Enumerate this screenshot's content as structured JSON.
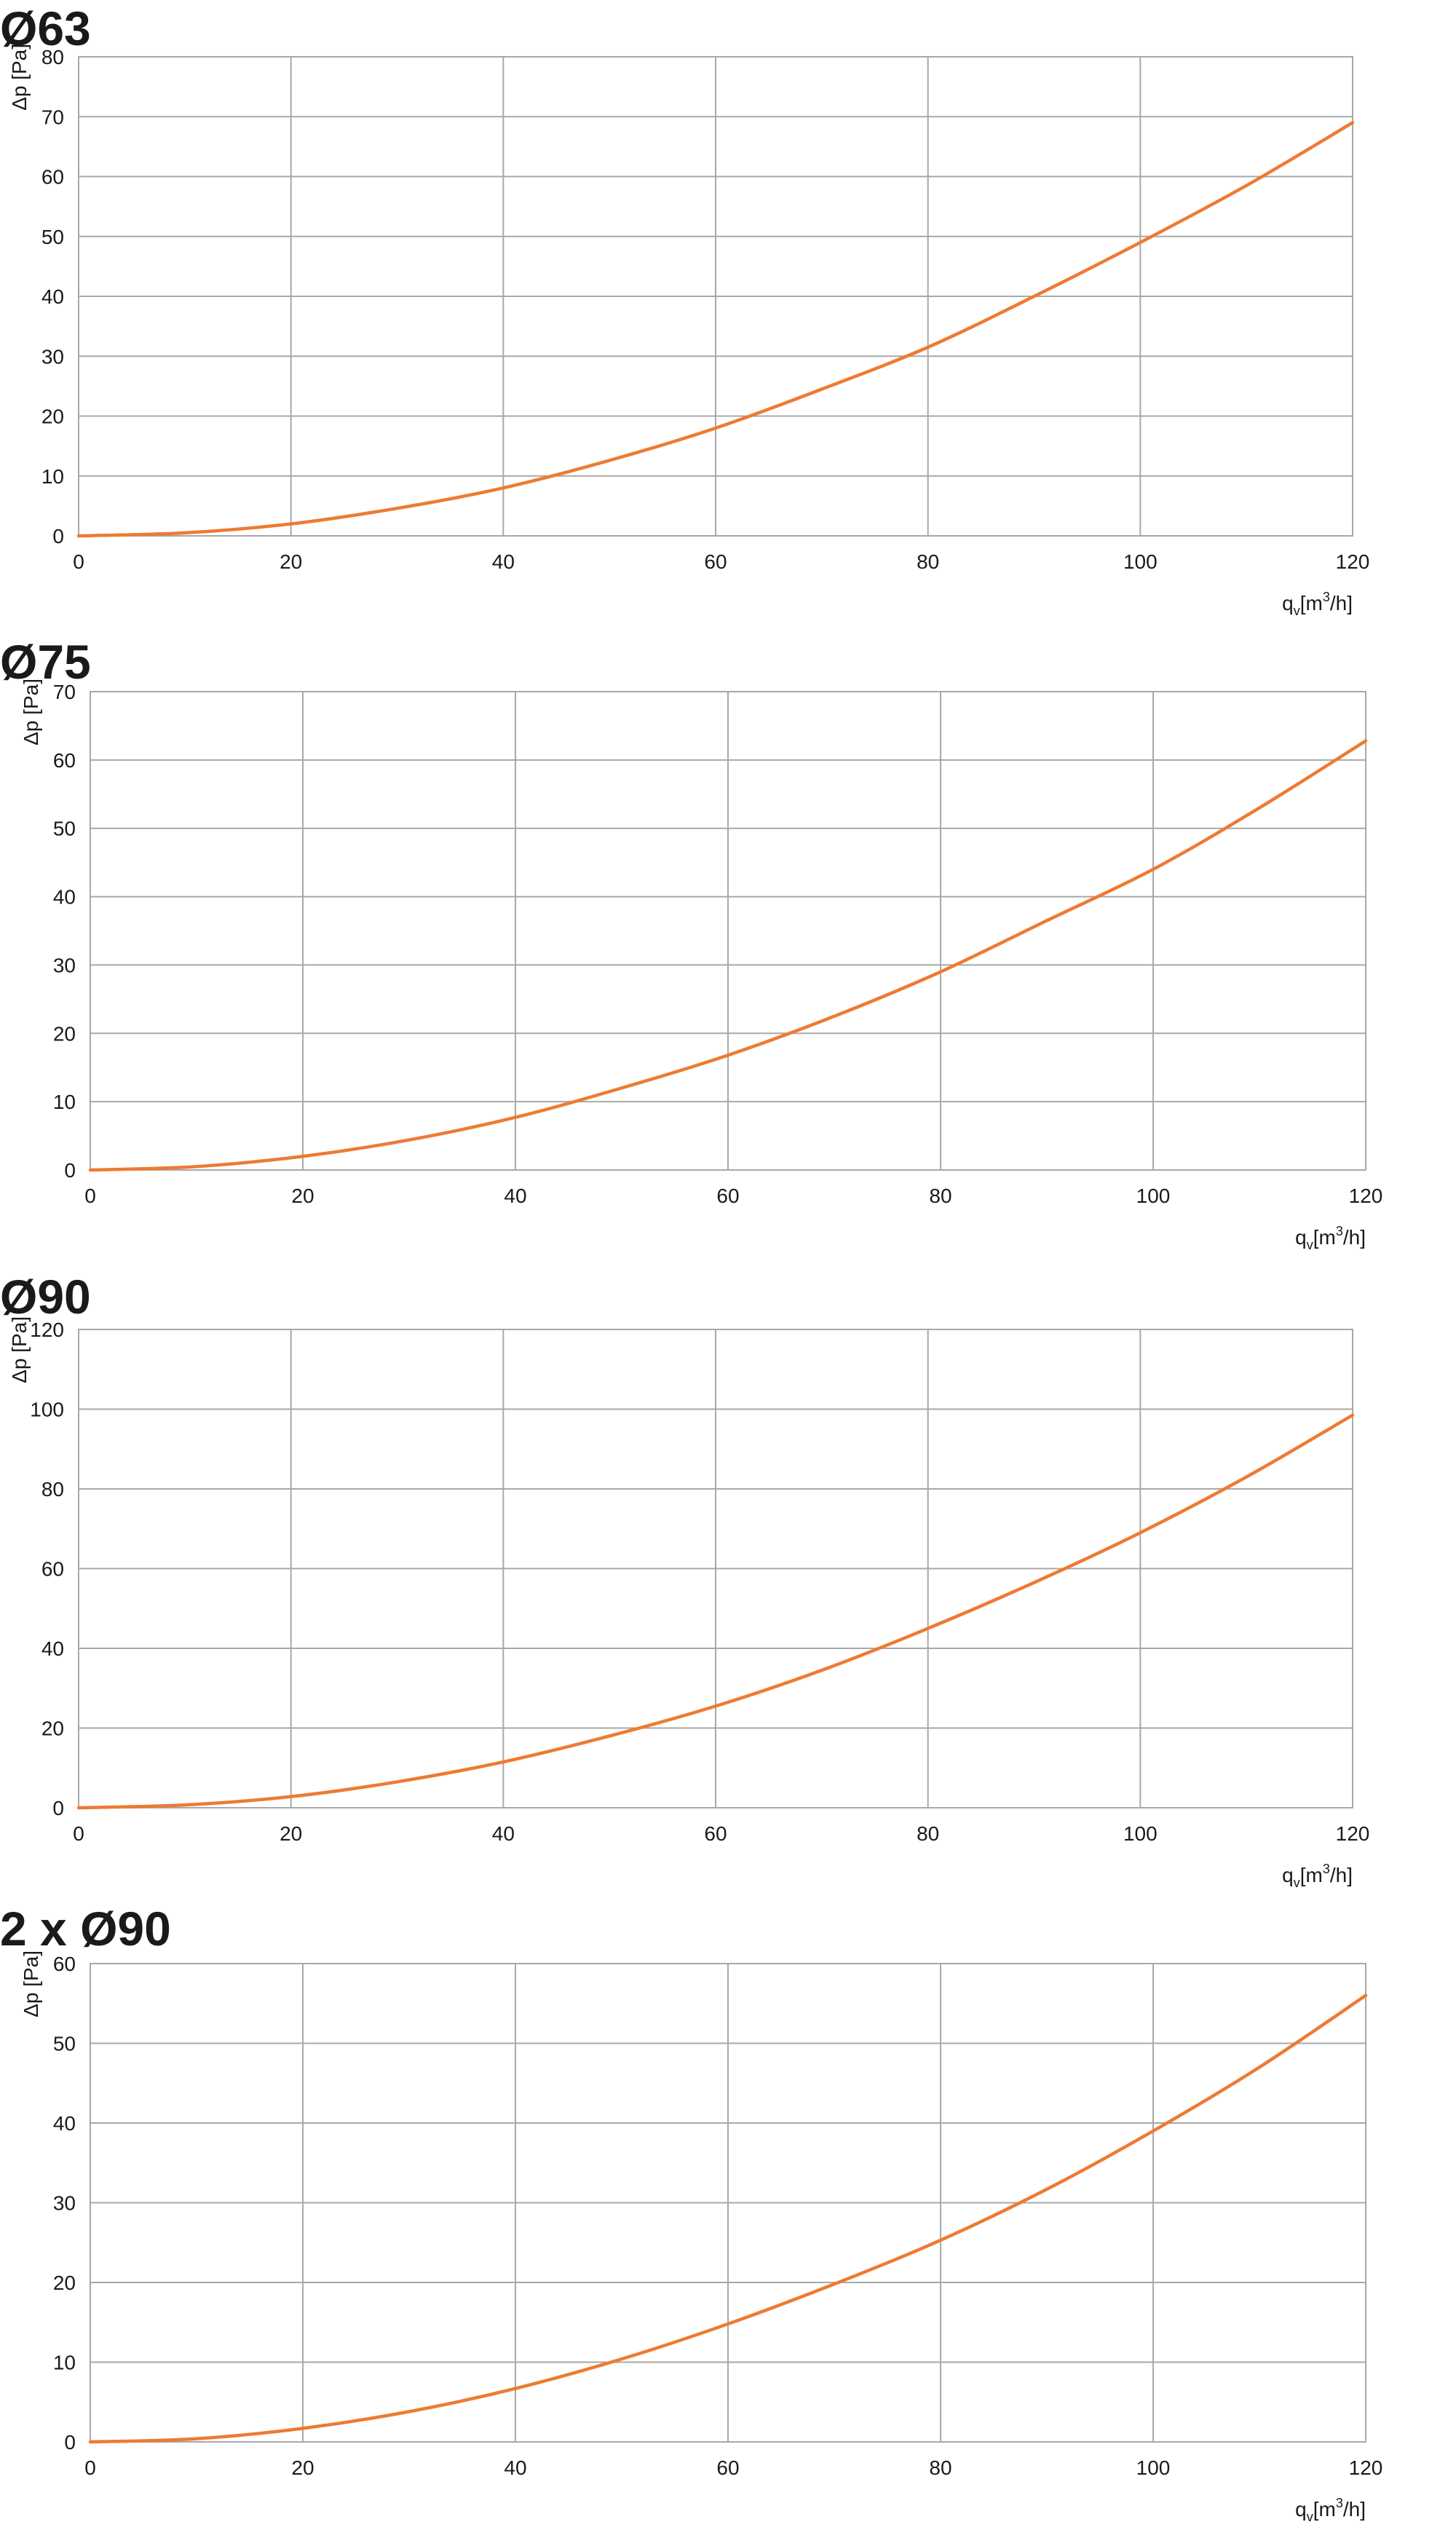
{
  "colors": {
    "curve": "#ed7b32",
    "grid": "#a8a8a8",
    "text": "#1a1a1a"
  },
  "chart_data": [
    {
      "type": "line",
      "title": "Ø63",
      "ylabel": "Δp [Pa]",
      "xlabel": {
        "main": "q",
        "sub": "v",
        "unit_prefix": "[m",
        "sup": "3",
        "unit_suffix": "/h]"
      },
      "xlim": [
        0,
        120
      ],
      "ylim": [
        0,
        80
      ],
      "grid": true,
      "xticks": [
        0,
        20,
        40,
        60,
        80,
        100,
        120
      ],
      "yticks": [
        0,
        10,
        20,
        30,
        40,
        50,
        60,
        70,
        80
      ],
      "series": [
        {
          "x": [
            0,
            10,
            20,
            30,
            40,
            50,
            60,
            70,
            80,
            90,
            100,
            110,
            120
          ],
          "y": [
            0,
            0.5,
            2.0,
            4.6,
            8.0,
            12.6,
            18.0,
            24.5,
            31.5,
            40.0,
            49.0,
            58.5,
            69.0
          ]
        }
      ]
    },
    {
      "type": "line",
      "title": "Ø75",
      "ylabel": "Δp [Pa]",
      "xlabel": {
        "main": "q",
        "sub": "v",
        "unit_prefix": "[m",
        "sup": "3",
        "unit_suffix": "/h]"
      },
      "xlim": [
        0,
        120
      ],
      "ylim": [
        0,
        70
      ],
      "grid": true,
      "xticks": [
        0,
        20,
        40,
        60,
        80,
        100,
        120
      ],
      "yticks": [
        0,
        10,
        20,
        30,
        40,
        50,
        60,
        70
      ],
      "series": [
        {
          "x": [
            0,
            10,
            20,
            30,
            40,
            50,
            60,
            70,
            80,
            90,
            100,
            110,
            120
          ],
          "y": [
            0,
            0.5,
            2.0,
            4.4,
            7.7,
            12.0,
            16.8,
            22.5,
            29.0,
            36.5,
            44.0,
            53.0,
            62.8
          ]
        }
      ]
    },
    {
      "type": "line",
      "title": "Ø90",
      "ylabel": "Δp [Pa]",
      "xlabel": {
        "main": "q",
        "sub": "v",
        "unit_prefix": "[m",
        "sup": "3",
        "unit_suffix": "/h]"
      },
      "xlim": [
        0,
        120
      ],
      "ylim": [
        0,
        120
      ],
      "grid": true,
      "xticks": [
        0,
        20,
        40,
        60,
        80,
        100,
        120
      ],
      "yticks": [
        0,
        20,
        40,
        60,
        80,
        100,
        120
      ],
      "series": [
        {
          "x": [
            0,
            10,
            20,
            30,
            40,
            50,
            60,
            70,
            80,
            90,
            100,
            110,
            120
          ],
          "y": [
            0,
            0.7,
            2.8,
            6.5,
            11.5,
            18.0,
            25.5,
            34.5,
            45.0,
            56.5,
            69.0,
            83.0,
            98.5
          ]
        }
      ]
    },
    {
      "type": "line",
      "title": "2 x Ø90",
      "ylabel": "Δp [Pa]",
      "xlabel": {
        "main": "q",
        "sub": "v",
        "unit_prefix": "[m",
        "sup": "3",
        "unit_suffix": "/h]"
      },
      "xlim": [
        0,
        120
      ],
      "ylim": [
        0,
        60
      ],
      "grid": true,
      "xticks": [
        0,
        20,
        40,
        60,
        80,
        100,
        120
      ],
      "yticks": [
        0,
        10,
        20,
        30,
        40,
        50,
        60
      ],
      "series": [
        {
          "x": [
            0,
            10,
            20,
            30,
            40,
            50,
            60,
            70,
            80,
            90,
            100,
            110,
            120
          ],
          "y": [
            0,
            0.4,
            1.7,
            3.8,
            6.7,
            10.4,
            14.8,
            19.8,
            25.3,
            31.7,
            39.0,
            47.0,
            56.0
          ]
        }
      ]
    }
  ]
}
